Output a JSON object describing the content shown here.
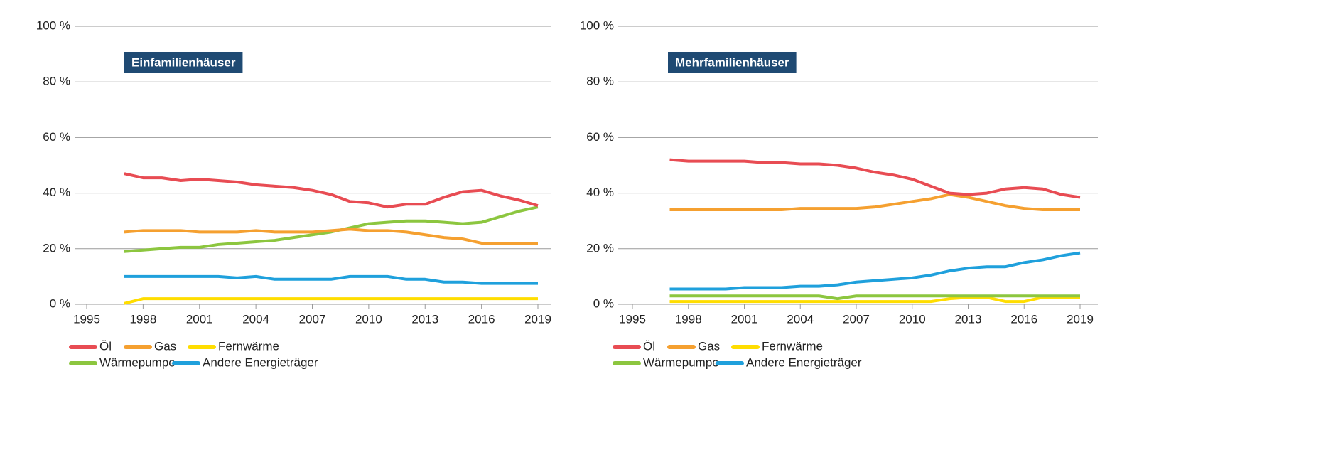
{
  "chart_data": [
    {
      "type": "line",
      "title": "Einfamilienhäuser",
      "x": [
        1997,
        1998,
        1999,
        2000,
        2001,
        2002,
        2003,
        2004,
        2005,
        2006,
        2007,
        2008,
        2009,
        2010,
        2011,
        2012,
        2013,
        2014,
        2015,
        2016,
        2017,
        2018,
        2019
      ],
      "series": [
        {
          "name": "Öl",
          "color": "#e84c53",
          "values": [
            47,
            45.5,
            45.5,
            44.5,
            45,
            44.5,
            44,
            43,
            42.5,
            42,
            41,
            39.5,
            37,
            36.5,
            35,
            36,
            36,
            38.5,
            40.5,
            41,
            39,
            37.5,
            35.5
          ]
        },
        {
          "name": "Gas",
          "color": "#f5a030",
          "values": [
            26,
            26.5,
            26.5,
            26.5,
            26,
            26,
            26,
            26.5,
            26,
            26,
            26,
            26.5,
            27,
            26.5,
            26.5,
            26,
            25,
            24,
            23.5,
            22,
            22,
            22,
            22
          ]
        },
        {
          "name": "Fernwärme",
          "color": "#ffdd00",
          "values": [
            0.3,
            2,
            2,
            2,
            2,
            2,
            2,
            2,
            2,
            2,
            2,
            2,
            2,
            2,
            2,
            2,
            2,
            2,
            2,
            2,
            2,
            2,
            2
          ]
        },
        {
          "name": "Wärmepumpe",
          "color": "#8cc63f",
          "values": [
            19,
            19.5,
            20,
            20.5,
            20.5,
            21.5,
            22,
            22.5,
            23,
            24,
            25,
            26,
            27.5,
            29,
            29.5,
            30,
            30,
            29.5,
            29,
            29.5,
            31.5,
            33.5,
            35
          ]
        },
        {
          "name": "Andere Energieträger",
          "color": "#1fa0dc",
          "values": [
            10,
            10,
            10,
            10,
            10,
            10,
            9.5,
            10,
            9,
            9,
            9,
            9,
            10,
            10,
            10,
            9,
            9,
            8,
            8,
            7.5,
            7.5,
            7.5,
            7.5
          ]
        }
      ],
      "xlim": [
        1995,
        2019
      ],
      "xticks": [
        1995,
        1998,
        2001,
        2004,
        2007,
        2010,
        2013,
        2016,
        2019
      ],
      "ylim": [
        0,
        100
      ],
      "yticks": [
        {
          "value": 0,
          "label": "0 %"
        },
        {
          "value": 20,
          "label": "20 %"
        },
        {
          "value": 40,
          "label": "40 %"
        },
        {
          "value": 60,
          "label": "60 %"
        },
        {
          "value": 80,
          "label": "80 %"
        },
        {
          "value": 100,
          "label": "100 %"
        }
      ],
      "grid": true
    },
    {
      "type": "line",
      "title": "Mehrfamilienhäuser",
      "x": [
        1997,
        1998,
        1999,
        2000,
        2001,
        2002,
        2003,
        2004,
        2005,
        2006,
        2007,
        2008,
        2009,
        2010,
        2011,
        2012,
        2013,
        2014,
        2015,
        2016,
        2017,
        2018,
        2019
      ],
      "series": [
        {
          "name": "Öl",
          "color": "#e84c53",
          "values": [
            52,
            51.5,
            51.5,
            51.5,
            51.5,
            51,
            51,
            50.5,
            50.5,
            50,
            49,
            47.5,
            46.5,
            45,
            42.5,
            40,
            39.5,
            40,
            41.5,
            42,
            41.5,
            39.5,
            38.5
          ]
        },
        {
          "name": "Gas",
          "color": "#f5a030",
          "values": [
            34,
            34,
            34,
            34,
            34,
            34,
            34,
            34.5,
            34.5,
            34.5,
            34.5,
            35,
            36,
            37,
            38,
            39.5,
            38.5,
            37,
            35.5,
            34.5,
            34,
            34,
            34
          ]
        },
        {
          "name": "Fernwärme",
          "color": "#ffdd00",
          "values": [
            1,
            1,
            1,
            1,
            1,
            1,
            1,
            1,
            1,
            1,
            1,
            1,
            1,
            1,
            1,
            2,
            2.5,
            2.5,
            1,
            1,
            2.5,
            2.5,
            2.5
          ]
        },
        {
          "name": "Wärmepumpe",
          "color": "#8cc63f",
          "values": [
            3,
            3,
            3,
            3,
            3,
            3,
            3,
            3,
            3,
            2,
            3,
            3,
            3,
            3,
            3,
            3,
            3,
            3,
            3,
            3,
            3,
            3,
            3
          ]
        },
        {
          "name": "Andere Energieträger",
          "color": "#1fa0dc",
          "values": [
            5.5,
            5.5,
            5.5,
            5.5,
            6,
            6,
            6,
            6.5,
            6.5,
            7,
            8,
            8.5,
            9,
            9.5,
            10.5,
            12,
            13,
            13.5,
            13.5,
            15,
            16,
            17.5,
            18.5
          ]
        }
      ],
      "xlim": [
        1995,
        2019
      ],
      "xticks": [
        1995,
        1998,
        2001,
        2004,
        2007,
        2010,
        2013,
        2016,
        2019
      ],
      "ylim": [
        0,
        100
      ],
      "yticks": [
        {
          "value": 0,
          "label": "0 %"
        },
        {
          "value": 20,
          "label": "20 %"
        },
        {
          "value": 40,
          "label": "40 %"
        },
        {
          "value": 60,
          "label": "60 %"
        },
        {
          "value": 80,
          "label": "80 %"
        },
        {
          "value": 100,
          "label": "100 %"
        }
      ],
      "grid": true
    }
  ]
}
